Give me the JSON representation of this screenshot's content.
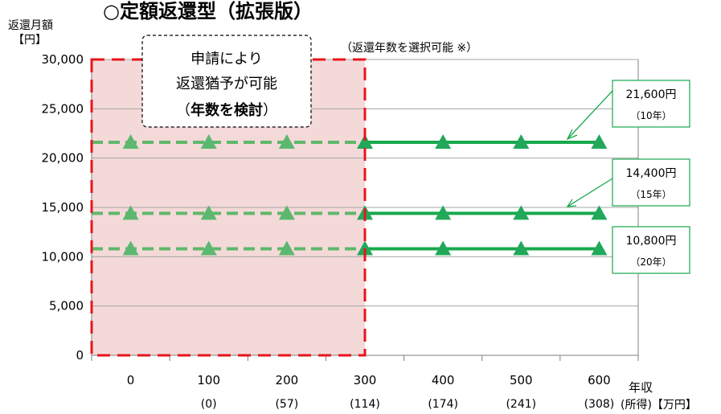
{
  "title": "○定額返還型（拡張版）",
  "y_title_line1": "返還月額",
  "y_title_line2": "【円】",
  "x_title_line1": "年収",
  "x_title_line2": "(所得)【万円】",
  "note": "（返還年数を選択可能 ※）",
  "deferral_box": {
    "line1": "申請により",
    "line2": "返還猶予が可能",
    "line3_open": "（",
    "line3_bold": "年数を検討",
    "line3_close": "）"
  },
  "callouts": [
    {
      "amount": "21,600円",
      "years": "（10年）"
    },
    {
      "amount": "14,400円",
      "years": "（15年）"
    },
    {
      "amount": "10,800円",
      "years": "（20年）"
    }
  ],
  "colors": {
    "line": "#18a84c",
    "marker": "#22a85a",
    "dashed": "#5fb86a",
    "shade": "#f4d9d9",
    "border_red": "#e8141c",
    "grid": "#a6a6a6"
  },
  "chart_data": {
    "type": "line",
    "x": [
      0,
      100,
      200,
      300,
      400,
      500,
      600
    ],
    "x_sub_labels": [
      "",
      "(0)",
      "(57)",
      "(114)",
      "(174)",
      "(241)",
      "(308)"
    ],
    "ylim": [
      0,
      30000
    ],
    "y_ticks": [
      "0",
      "5,000",
      "10,000",
      "15,000",
      "20,000",
      "25,000",
      "30,000"
    ],
    "grid": true,
    "deferral_region_x": [
      -50,
      300
    ],
    "series": [
      {
        "values": [
          21600,
          21600,
          21600,
          21600,
          21600,
          21600,
          21600
        ]
      },
      {
        "values": [
          14400,
          14400,
          14400,
          14400,
          14400,
          14400,
          14400
        ]
      },
      {
        "values": [
          10800,
          10800,
          10800,
          10800,
          10800,
          10800,
          10800
        ]
      }
    ]
  }
}
